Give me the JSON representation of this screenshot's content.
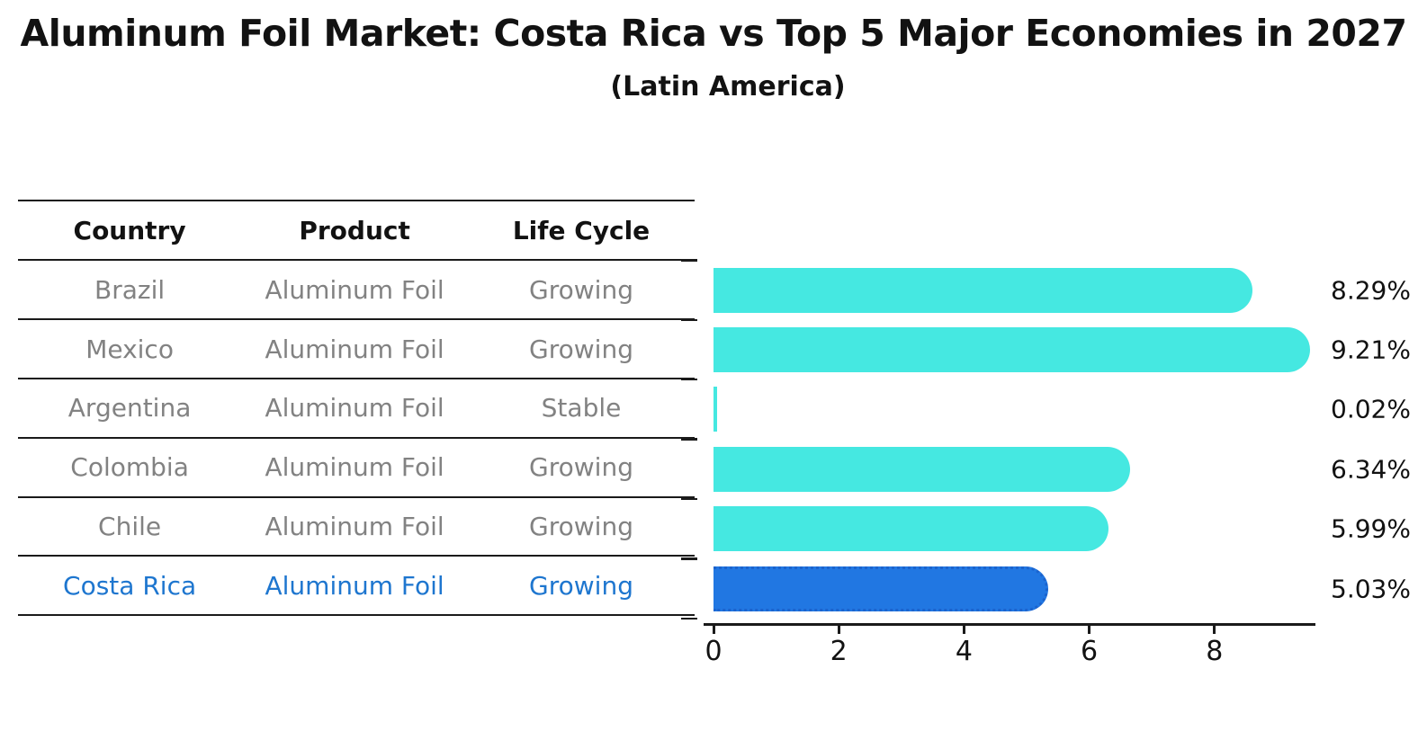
{
  "title": "Aluminum Foil Market: Costa Rica vs Top 5 Major Economies in 2027",
  "subtitle": "(Latin America)",
  "table": {
    "headers": [
      "Country",
      "Product",
      "Life Cycle"
    ],
    "rows": [
      {
        "country": "Brazil",
        "product": "Aluminum Foil",
        "life_cycle": "Growing",
        "highlight": false
      },
      {
        "country": "Mexico",
        "product": "Aluminum Foil",
        "life_cycle": "Growing",
        "highlight": false
      },
      {
        "country": "Argentina",
        "product": "Aluminum Foil",
        "life_cycle": "Stable",
        "highlight": false
      },
      {
        "country": "Colombia",
        "product": "Aluminum Foil",
        "life_cycle": "Growing",
        "highlight": false
      },
      {
        "country": "Chile",
        "product": "Aluminum Foil",
        "life_cycle": "Growing",
        "highlight": false
      },
      {
        "country": "Costa Rica",
        "product": "Aluminum Foil",
        "life_cycle": "Growing",
        "highlight": true
      }
    ]
  },
  "chart_data": {
    "type": "bar",
    "orientation": "horizontal",
    "title": "Aluminum Foil Market: Costa Rica vs Top 5 Major Economies in 2027",
    "subtitle": "(Latin America)",
    "categories": [
      "Brazil",
      "Mexico",
      "Argentina",
      "Colombia",
      "Chile",
      "Costa Rica"
    ],
    "values": [
      8.29,
      9.21,
      0.02,
      6.34,
      5.99,
      5.03
    ],
    "value_labels": [
      "8.29%",
      "9.21%",
      "0.02%",
      "6.34%",
      "5.99%",
      "5.03%"
    ],
    "x_ticks": [
      0,
      2,
      4,
      6,
      8
    ],
    "xlim": [
      0,
      9.6
    ],
    "grid": false,
    "legend": false,
    "bar_color": "#45E8E1",
    "highlight_color": "#2177E2",
    "highlight_index": 5,
    "highlight_text_color": "#1E76CF"
  }
}
